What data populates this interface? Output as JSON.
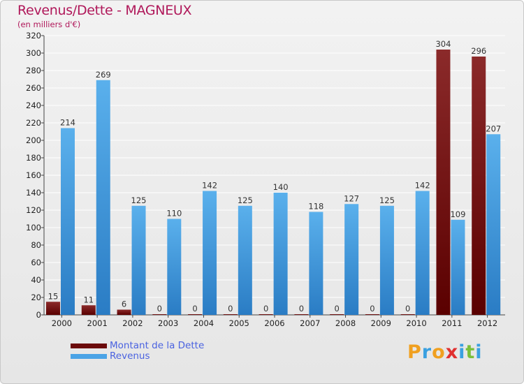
{
  "chart_data": {
    "type": "bar",
    "title": "Revenus/Dette - MAGNEUX",
    "subtitle": "(en milliers d'€)",
    "xlabel": "",
    "ylabel": "",
    "categories": [
      "2000",
      "2001",
      "2002",
      "2003",
      "2004",
      "2005",
      "2006",
      "2007",
      "2008",
      "2009",
      "2010",
      "2011",
      "2012"
    ],
    "series": [
      {
        "name": "Montant de la Dette",
        "color": "#7a1010",
        "values": [
          15,
          11,
          6,
          0,
          0,
          0,
          0,
          0,
          0,
          0,
          0,
          304,
          296
        ]
      },
      {
        "name": "Revenus",
        "color": "#4aa3e6",
        "values": [
          214,
          269,
          125,
          110,
          142,
          125,
          140,
          118,
          127,
          125,
          142,
          109,
          207
        ]
      }
    ],
    "ylim": [
      0,
      320
    ],
    "yticks": [
      0,
      20,
      40,
      60,
      80,
      100,
      120,
      140,
      160,
      180,
      200,
      220,
      240,
      260,
      280,
      300,
      320
    ],
    "grid": true,
    "legend": "bottom-left"
  },
  "logo": {
    "letters": [
      {
        "char": "P",
        "color": "#f0a020"
      },
      {
        "char": "r",
        "color": "#3aa0e0"
      },
      {
        "char": "o",
        "color": "#f0a020"
      },
      {
        "char": "x",
        "color": "#e03030"
      },
      {
        "char": "i",
        "color": "#3aa0e0"
      },
      {
        "char": "t",
        "color": "#7abf3a"
      },
      {
        "char": "i",
        "color": "#3aa0e0"
      }
    ]
  }
}
